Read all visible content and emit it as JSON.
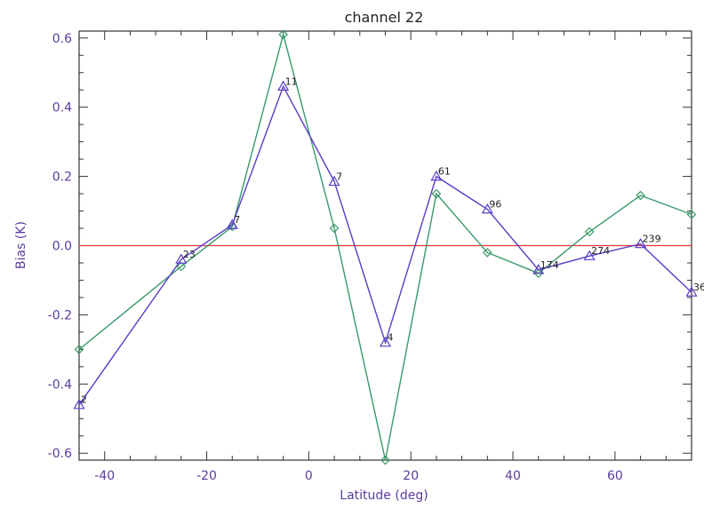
{
  "chart_data": {
    "type": "line",
    "title": "channel 22",
    "xlabel": "Latitude (deg)",
    "ylabel": "Bias (K)",
    "xlim": [
      -45,
      75
    ],
    "ylim": [
      -0.62,
      0.62
    ],
    "x_ticks": [
      -40,
      -20,
      0,
      20,
      40,
      60
    ],
    "y_ticks": [
      -0.6,
      -0.4,
      -0.2,
      0.0,
      0.2,
      0.4,
      0.6
    ],
    "x_tick_labels": [
      "-40",
      "-20",
      "0",
      "20",
      "40",
      "60"
    ],
    "y_tick_labels": [
      "-0.6",
      "-0.4",
      "-0.2",
      "0.0",
      "0.2",
      "0.4",
      "0.6"
    ],
    "zero_line": {
      "y": 0.0,
      "color": "#e8343a"
    },
    "series": [
      {
        "marker": "diamond",
        "color": "#3a9a6a",
        "x": [
          -45,
          -25,
          -15,
          -5,
          5,
          15,
          25,
          35,
          45,
          55,
          65,
          75
        ],
        "y": [
          -0.3,
          -0.06,
          0.055,
          0.61,
          0.05,
          -0.62,
          0.15,
          -0.02,
          -0.08,
          0.04,
          0.145,
          0.09
        ]
      },
      {
        "marker": "triangle",
        "color": "#5a3cc8",
        "x": [
          -45,
          -25,
          -15,
          -5,
          5,
          15,
          25,
          35,
          45,
          55,
          65,
          75
        ],
        "y": [
          -0.46,
          -0.04,
          0.06,
          0.46,
          0.185,
          -0.28,
          0.2,
          0.105,
          -0.07,
          -0.03,
          0.005,
          -0.135
        ],
        "point_labels": [
          "2",
          "23",
          "7",
          "11",
          "7",
          "4",
          "61",
          "96",
          "174",
          "274",
          "239",
          "36"
        ]
      }
    ]
  }
}
